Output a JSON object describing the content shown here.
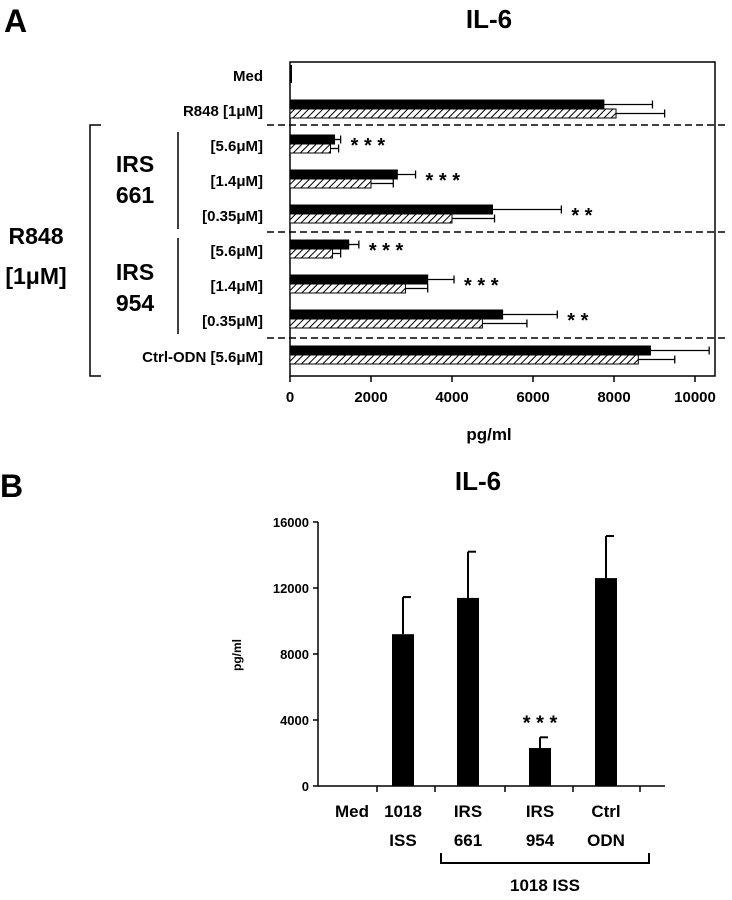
{
  "panels": {
    "a_label": "A",
    "b_label": "B"
  },
  "chart_data": [
    {
      "panel": "A",
      "type": "bar",
      "orientation": "horizontal",
      "title": "IL-6",
      "xlabel": "pg/ml",
      "xlim": [
        0,
        10000
      ],
      "xticks": [
        0,
        2000,
        4000,
        6000,
        8000,
        10000
      ],
      "grid": false,
      "legend": "none",
      "categories": [
        "Med",
        "R848 [1μM]",
        "[5.6μM]",
        "[1.4μM]",
        "[0.35μM]",
        "[5.6μM]",
        "[1.4μM]",
        "[0.35μM]",
        "Ctrl-ODN [5.6μM]"
      ],
      "series": [
        {
          "fill": "solid",
          "values": [
            0,
            7750,
            1100,
            2650,
            5000,
            1450,
            3400,
            5250,
            8900
          ],
          "errors": [
            0,
            1200,
            150,
            450,
            1700,
            250,
            650,
            1350,
            1450
          ]
        },
        {
          "fill": "hatched",
          "values": [
            0,
            8050,
            1000,
            2000,
            4000,
            1050,
            2850,
            4750,
            8600
          ],
          "errors": [
            0,
            1200,
            200,
            550,
            1050,
            200,
            550,
            1100,
            900
          ]
        }
      ],
      "significance": [
        "",
        "",
        "* * *",
        "* * *",
        "* *",
        "* * *",
        "* * *",
        "* *",
        ""
      ],
      "groups": [
        {
          "label_lines": [
            "IRS",
            "661"
          ]
        },
        {
          "label_lines": [
            "IRS",
            "954"
          ]
        }
      ],
      "bracket_label_lines": [
        "R848",
        "[1μM]"
      ]
    },
    {
      "panel": "B",
      "type": "bar",
      "title": "IL-6",
      "ylabel": "pg/ml",
      "ylim": [
        0,
        16000
      ],
      "yticks": [
        0,
        4000,
        8000,
        12000,
        16000
      ],
      "grid": false,
      "legend": "none",
      "categories": [
        [
          "Med"
        ],
        [
          "1018",
          "ISS"
        ],
        [
          "IRS",
          "661"
        ],
        [
          "IRS",
          "954"
        ],
        [
          "Ctrl",
          "ODN"
        ]
      ],
      "values": [
        0,
        9200,
        11400,
        2300,
        12600
      ],
      "errors": [
        0,
        2250,
        2800,
        650,
        2550
      ],
      "significance": [
        "",
        "",
        "",
        "* * *",
        ""
      ],
      "bracket_label": "1018 ISS"
    }
  ],
  "colors": {
    "bar": "#000000",
    "hatch": "#000000",
    "background": "#ffffff"
  }
}
